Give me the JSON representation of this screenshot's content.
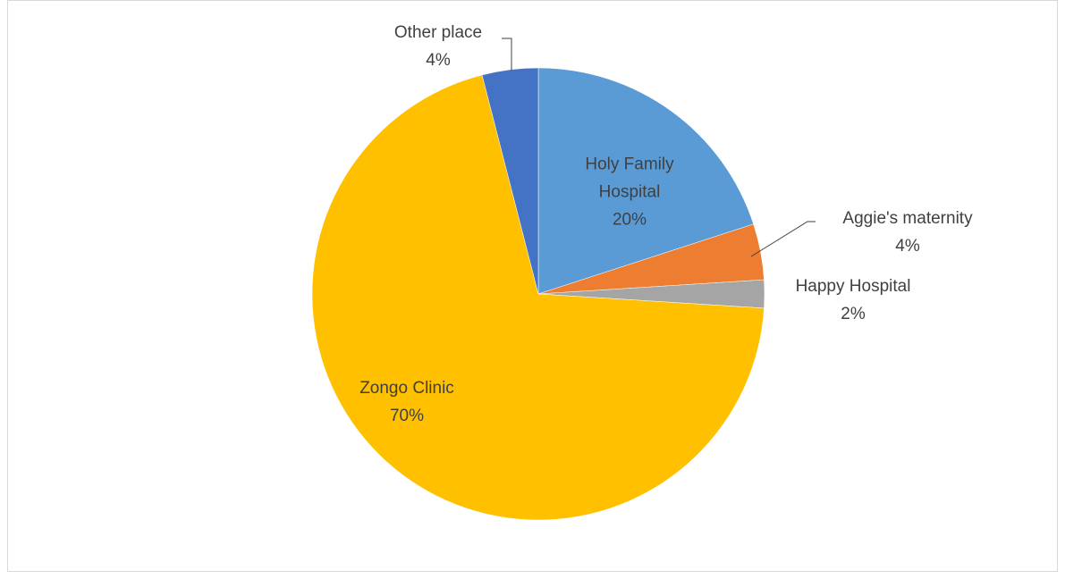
{
  "chart_data": {
    "type": "pie",
    "categories": [
      "Holy Family Hospital",
      "Aggie's maternity",
      "Happy Hospital",
      "Zongo Clinic",
      "Other place"
    ],
    "values": [
      20,
      4,
      2,
      70,
      4
    ],
    "value_labels": [
      "20%",
      "4%",
      "2%",
      "70%",
      "4%"
    ],
    "colors": [
      "#5b9bd5",
      "#ed7d31",
      "#a5a5a5",
      "#ffc000",
      "#4472c4"
    ]
  }
}
